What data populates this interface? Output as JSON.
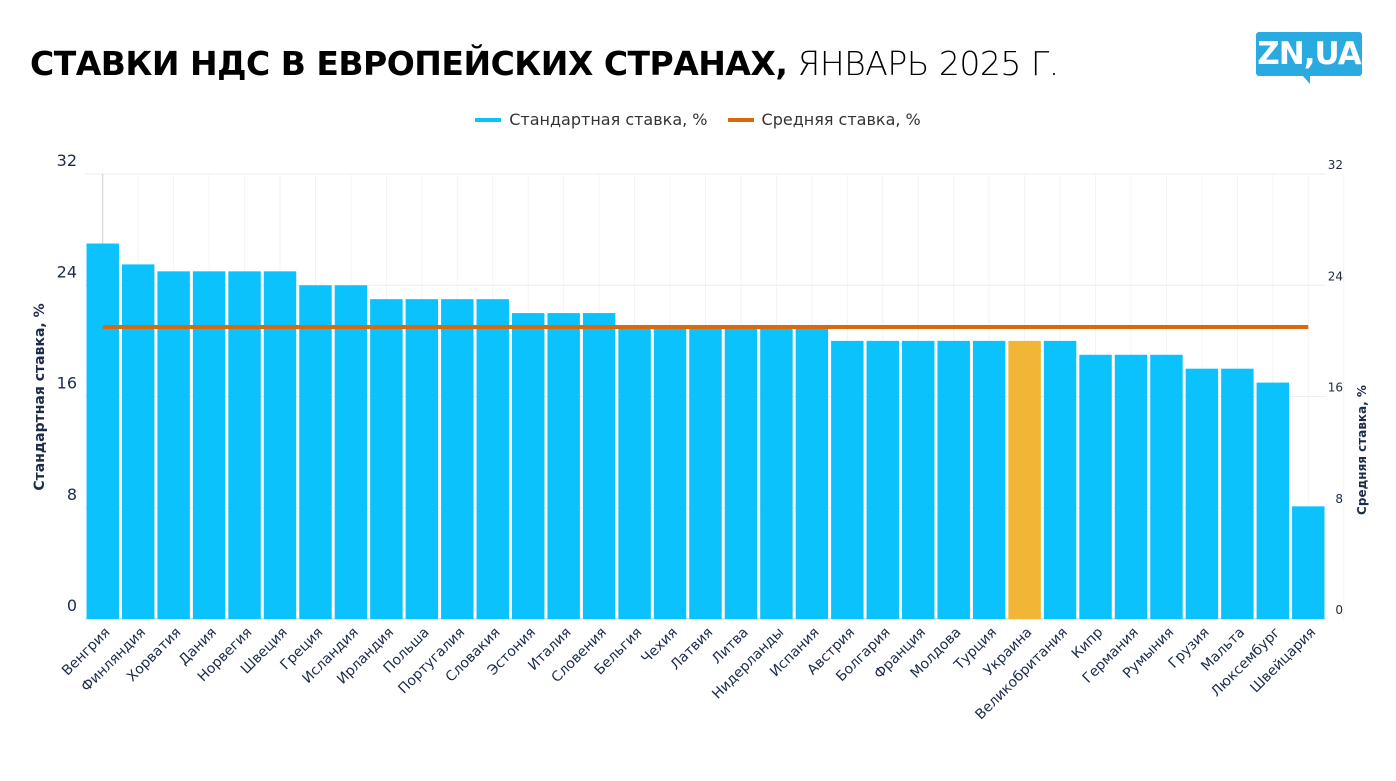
{
  "header": {
    "title_bold": "СТАВКИ НДС В ЕВРОПЕЙСКИХ СТРАНАХ,",
    "title_light": " ЯНВАРЬ 2025 Г.",
    "logo_text": "ZN,UA"
  },
  "colors": {
    "bar": "#0cc2fc",
    "highlight": "#f2b636",
    "average": "#d9690b",
    "logo": "#29abe2",
    "axis_text": "#1c2b4a"
  },
  "chart_data": {
    "type": "bar",
    "title": "СТАВКИ НДС В ЕВРОПЕЙСКИХ СТРАНАХ, ЯНВАРЬ 2025 Г.",
    "legend": [
      "Стандартная ставка, %",
      "Средняя ставка, %"
    ],
    "legend_position": "top-center",
    "ylabel": "Стандартная ставка, %",
    "y2label": "Средняя ставка, %",
    "ylim": [
      0,
      32
    ],
    "yticks": [
      0,
      8,
      16,
      24,
      32
    ],
    "grid": true,
    "highlight_category": "Украина",
    "categories": [
      "Венгрия",
      "Финляндия",
      "Хорватия",
      "Дания",
      "Норвегия",
      "Швеция",
      "Греция",
      "Исландия",
      "Ирландия",
      "Польша",
      "Португалия",
      "Словакия",
      "Эстония",
      "Италия",
      "Словения",
      "Бельгия",
      "Чехия",
      "Латвия",
      "Литва",
      "Нидерланды",
      "Испания",
      "Австрия",
      "Болгария",
      "Франция",
      "Молдова",
      "Турция",
      "Украина",
      "Великобритания",
      "Кипр",
      "Германия",
      "Румыния",
      "Грузия",
      "Мальта",
      "Люксембург",
      "Швейцария"
    ],
    "series": [
      {
        "name": "Стандартная ставка, %",
        "type": "bar",
        "values": [
          27,
          25.5,
          25,
          25,
          25,
          25,
          24,
          24,
          23,
          23,
          23,
          23,
          22,
          22,
          22,
          21,
          21,
          21,
          21,
          21,
          21,
          20,
          20,
          20,
          20,
          20,
          20,
          20,
          19,
          19,
          19,
          18,
          18,
          17,
          8.1
        ]
      },
      {
        "name": "Средняя ставка, %",
        "type": "line",
        "value": 21
      }
    ]
  }
}
